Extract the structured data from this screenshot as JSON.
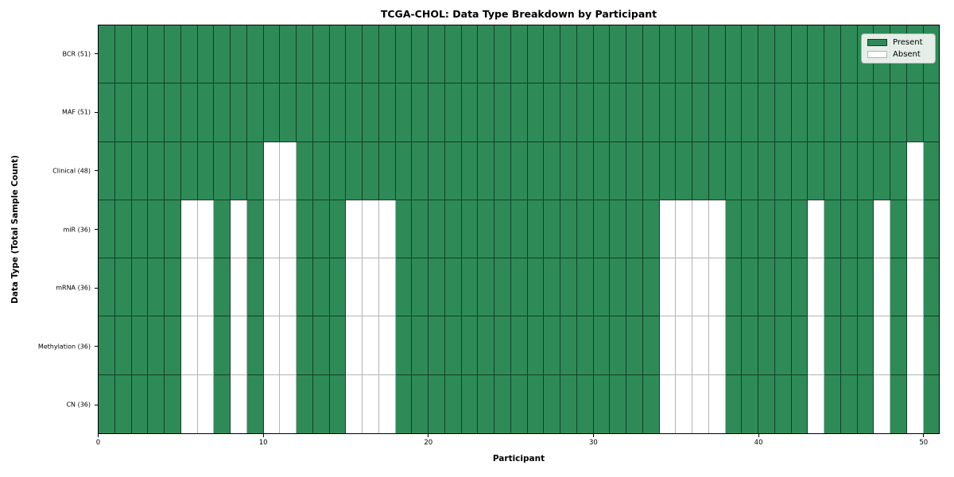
{
  "chart_data": {
    "type": "heatmap",
    "title": "TCGA-CHOL: Data Type Breakdown by Participant",
    "xlabel": "Participant",
    "ylabel": "Data Type (Total Sample Count)",
    "x_axis_range": [
      0,
      51
    ],
    "x_ticks": [
      0,
      10,
      20,
      30,
      40,
      50
    ],
    "n_participants": 51,
    "grid": true,
    "legend_position": "upper right",
    "legend": [
      {
        "label": "Present",
        "color": "#2E8B57"
      },
      {
        "label": "Absent",
        "color": "#ffffff"
      }
    ],
    "colors": {
      "present_fill": "#2E8B57",
      "absent_fill": "#ffffff",
      "present_grid": "#1c4a30",
      "absent_grid": "#b4b4b4"
    },
    "rows": [
      {
        "name": "BCR",
        "label": "BCR (51)",
        "present_count": 51,
        "absent_participants": []
      },
      {
        "name": "MAF",
        "label": "MAF (51)",
        "present_count": 51,
        "absent_participants": []
      },
      {
        "name": "Clinical",
        "label": "Clinical (48)",
        "present_count": 48,
        "absent_participants": [
          10,
          11,
          49
        ]
      },
      {
        "name": "miR",
        "label": "miR (36)",
        "present_count": 36,
        "absent_participants": [
          5,
          6,
          8,
          10,
          11,
          15,
          16,
          17,
          34,
          35,
          36,
          37,
          43,
          47,
          49
        ]
      },
      {
        "name": "mRNA",
        "label": "mRNA (36)",
        "present_count": 36,
        "absent_participants": [
          5,
          6,
          8,
          10,
          11,
          15,
          16,
          17,
          34,
          35,
          36,
          37,
          43,
          47,
          49
        ]
      },
      {
        "name": "Methylation",
        "label": "Methylation (36)",
        "present_count": 36,
        "absent_participants": [
          5,
          6,
          8,
          10,
          11,
          15,
          16,
          17,
          34,
          35,
          36,
          37,
          43,
          47,
          49
        ]
      },
      {
        "name": "CN",
        "label": "CN (36)",
        "present_count": 36,
        "absent_participants": [
          5,
          6,
          8,
          10,
          11,
          15,
          16,
          17,
          34,
          35,
          36,
          37,
          43,
          47,
          49
        ]
      }
    ]
  }
}
